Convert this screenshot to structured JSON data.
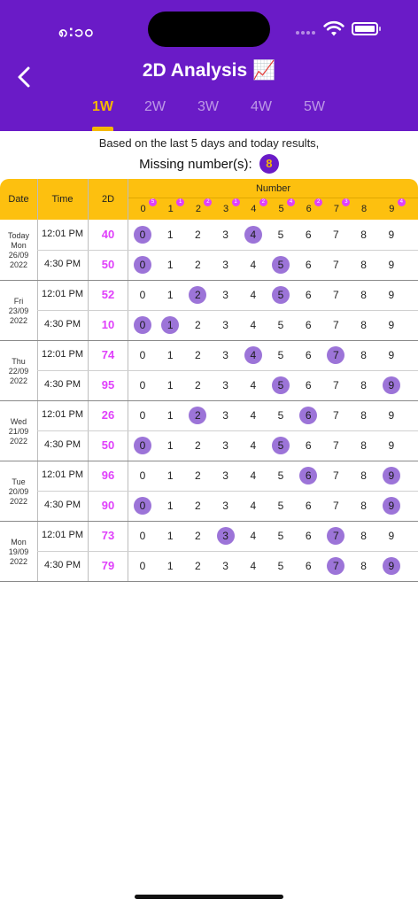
{
  "status": {
    "time": "၈:၁၀"
  },
  "header": {
    "title": "2D Analysis 📈"
  },
  "tabs": [
    {
      "label": "1W",
      "active": true
    },
    {
      "label": "2W",
      "active": false
    },
    {
      "label": "3W",
      "active": false
    },
    {
      "label": "4W",
      "active": false
    },
    {
      "label": "5W",
      "active": false
    }
  ],
  "summary": {
    "text": "Based on the last 5 days and today results,",
    "missing_label": "Missing number(s):",
    "missing_value": "8"
  },
  "table": {
    "headers": {
      "date": "Date",
      "time": "Time",
      "twod": "2D",
      "number": "Number"
    },
    "digits": [
      "0",
      "1",
      "2",
      "3",
      "4",
      "5",
      "6",
      "7",
      "8",
      "9"
    ],
    "digit_counts": [
      "5",
      "1",
      "2",
      "1",
      "2",
      "4",
      "2",
      "3",
      "",
      "4"
    ],
    "days": [
      {
        "date_lines": [
          "Today",
          "Mon",
          "26/09",
          "2022"
        ],
        "rows": [
          {
            "time": "12:01 PM",
            "value": "40",
            "hits": [
              0,
              4
            ]
          },
          {
            "time": "4:30 PM",
            "value": "50",
            "hits": [
              0,
              5
            ]
          }
        ]
      },
      {
        "date_lines": [
          "Fri",
          "23/09",
          "2022"
        ],
        "rows": [
          {
            "time": "12:01 PM",
            "value": "52",
            "hits": [
              2,
              5
            ]
          },
          {
            "time": "4:30 PM",
            "value": "10",
            "hits": [
              0,
              1
            ]
          }
        ]
      },
      {
        "date_lines": [
          "Thu",
          "22/09",
          "2022"
        ],
        "rows": [
          {
            "time": "12:01 PM",
            "value": "74",
            "hits": [
              4,
              7
            ]
          },
          {
            "time": "4:30 PM",
            "value": "95",
            "hits": [
              5,
              9
            ]
          }
        ]
      },
      {
        "date_lines": [
          "Wed",
          "21/09",
          "2022"
        ],
        "rows": [
          {
            "time": "12:01 PM",
            "value": "26",
            "hits": [
              2,
              6
            ]
          },
          {
            "time": "4:30 PM",
            "value": "50",
            "hits": [
              0,
              5
            ]
          }
        ]
      },
      {
        "date_lines": [
          "Tue",
          "20/09",
          "2022"
        ],
        "rows": [
          {
            "time": "12:01 PM",
            "value": "96",
            "hits": [
              6,
              9
            ]
          },
          {
            "time": "4:30 PM",
            "value": "90",
            "hits": [
              0,
              9
            ]
          }
        ]
      },
      {
        "date_lines": [
          "Mon",
          "19/09",
          "2022"
        ],
        "rows": [
          {
            "time": "12:01 PM",
            "value": "73",
            "hits": [
              3,
              7
            ]
          },
          {
            "time": "4:30 PM",
            "value": "79",
            "hits": [
              7,
              9
            ]
          }
        ]
      }
    ]
  },
  "colors": {
    "brand": "#6a1bc7",
    "accent": "#f5b800",
    "header_bg": "#fdc00f",
    "value": "#e040fb",
    "hit": "#9c74d8"
  },
  "icons": {
    "back": "chevron-left-icon",
    "wifi": "wifi-icon",
    "battery": "battery-icon"
  }
}
